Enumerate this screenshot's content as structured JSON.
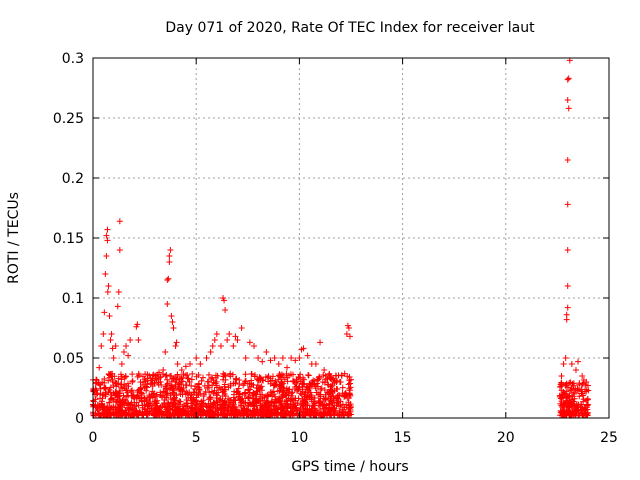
{
  "chart_data": {
    "type": "scatter",
    "title": "Day 071 of 2020, Rate Of TEC Index for receiver laut",
    "xlabel": "GPS time / hours",
    "ylabel": "ROTI / TECUs",
    "xlim": [
      0,
      25
    ],
    "ylim": [
      0,
      0.3
    ],
    "xticks": [
      0,
      5,
      10,
      15,
      20,
      25
    ],
    "yticks": [
      0,
      0.05,
      0.1,
      0.15,
      0.2,
      0.25,
      0.3
    ],
    "xtick_labels": [
      "0",
      "5",
      "10",
      "15",
      "20",
      "25"
    ],
    "ytick_labels": [
      "0",
      "0.05",
      "0.1",
      "0.15",
      "0.2",
      "0.25",
      "0.3"
    ],
    "grid": true,
    "marker": "+",
    "color": "#ff0000",
    "segments": [
      {
        "x_start": 0.0,
        "x_end": 12.5,
        "baseline_max": 0.035
      },
      {
        "x_start": 22.6,
        "x_end": 24.0,
        "baseline_max": 0.03
      }
    ],
    "series": [
      {
        "name": "ROTI",
        "points": [
          [
            0.3,
            0.042
          ],
          [
            0.4,
            0.06
          ],
          [
            0.5,
            0.07
          ],
          [
            0.55,
            0.088
          ],
          [
            0.6,
            0.12
          ],
          [
            0.65,
            0.135
          ],
          [
            0.65,
            0.152
          ],
          [
            0.7,
            0.157
          ],
          [
            0.7,
            0.148
          ],
          [
            0.72,
            0.105
          ],
          [
            0.75,
            0.11
          ],
          [
            0.8,
            0.085
          ],
          [
            0.85,
            0.065
          ],
          [
            0.9,
            0.07
          ],
          [
            0.95,
            0.058
          ],
          [
            1.0,
            0.05
          ],
          [
            1.1,
            0.06
          ],
          [
            1.2,
            0.093
          ],
          [
            1.25,
            0.105
          ],
          [
            1.3,
            0.14
          ],
          [
            1.3,
            0.164
          ],
          [
            1.4,
            0.045
          ],
          [
            1.5,
            0.055
          ],
          [
            1.6,
            0.06
          ],
          [
            1.7,
            0.052
          ],
          [
            1.8,
            0.065
          ],
          [
            1.9,
            0.03
          ],
          [
            2.1,
            0.076
          ],
          [
            2.15,
            0.078
          ],
          [
            2.2,
            0.065
          ],
          [
            2.3,
            0.03
          ],
          [
            2.5,
            0.025
          ],
          [
            2.8,
            0.028
          ],
          [
            3.0,
            0.035
          ],
          [
            3.2,
            0.038
          ],
          [
            3.4,
            0.04
          ],
          [
            3.5,
            0.055
          ],
          [
            3.6,
            0.095
          ],
          [
            3.6,
            0.115
          ],
          [
            3.65,
            0.116
          ],
          [
            3.7,
            0.13
          ],
          [
            3.7,
            0.135
          ],
          [
            3.75,
            0.14
          ],
          [
            3.8,
            0.085
          ],
          [
            3.85,
            0.08
          ],
          [
            3.9,
            0.075
          ],
          [
            4.0,
            0.06
          ],
          [
            4.05,
            0.063
          ],
          [
            4.1,
            0.045
          ],
          [
            4.3,
            0.04
          ],
          [
            4.5,
            0.043
          ],
          [
            4.7,
            0.045
          ],
          [
            5.0,
            0.05
          ],
          [
            5.2,
            0.045
          ],
          [
            5.5,
            0.05
          ],
          [
            5.7,
            0.055
          ],
          [
            5.8,
            0.06
          ],
          [
            5.9,
            0.065
          ],
          [
            6.0,
            0.07
          ],
          [
            6.2,
            0.06
          ],
          [
            6.3,
            0.1
          ],
          [
            6.35,
            0.098
          ],
          [
            6.4,
            0.09
          ],
          [
            6.5,
            0.065
          ],
          [
            6.6,
            0.07
          ],
          [
            6.8,
            0.06
          ],
          [
            6.9,
            0.068
          ],
          [
            7.0,
            0.065
          ],
          [
            7.2,
            0.075
          ],
          [
            7.4,
            0.05
          ],
          [
            7.6,
            0.063
          ],
          [
            7.8,
            0.06
          ],
          [
            8.0,
            0.05
          ],
          [
            8.2,
            0.047
          ],
          [
            8.4,
            0.055
          ],
          [
            8.6,
            0.048
          ],
          [
            8.8,
            0.05
          ],
          [
            9.0,
            0.045
          ],
          [
            9.2,
            0.05
          ],
          [
            9.4,
            0.042
          ],
          [
            9.6,
            0.05
          ],
          [
            9.8,
            0.048
          ],
          [
            10.0,
            0.05
          ],
          [
            10.1,
            0.057
          ],
          [
            10.2,
            0.058
          ],
          [
            10.4,
            0.052
          ],
          [
            10.6,
            0.045
          ],
          [
            10.8,
            0.045
          ],
          [
            11.0,
            0.063
          ],
          [
            11.2,
            0.04
          ],
          [
            11.5,
            0.035
          ],
          [
            11.8,
            0.03
          ],
          [
            12.0,
            0.03
          ],
          [
            12.2,
            0.02
          ],
          [
            12.3,
            0.07
          ],
          [
            12.35,
            0.077
          ],
          [
            12.4,
            0.075
          ],
          [
            12.45,
            0.068
          ],
          [
            22.7,
            0.035
          ],
          [
            22.8,
            0.045
          ],
          [
            22.9,
            0.05
          ],
          [
            22.95,
            0.082
          ],
          [
            22.95,
            0.086
          ],
          [
            23.0,
            0.092
          ],
          [
            23.0,
            0.11
          ],
          [
            23.0,
            0.14
          ],
          [
            23.0,
            0.178
          ],
          [
            23.0,
            0.215
          ],
          [
            23.05,
            0.258
          ],
          [
            23.0,
            0.265
          ],
          [
            23.0,
            0.282
          ],
          [
            23.05,
            0.283
          ],
          [
            23.1,
            0.298
          ],
          [
            23.2,
            0.045
          ],
          [
            23.4,
            0.04
          ],
          [
            23.5,
            0.047
          ],
          [
            23.7,
            0.035
          ],
          [
            23.9,
            0.03
          ]
        ]
      }
    ]
  }
}
